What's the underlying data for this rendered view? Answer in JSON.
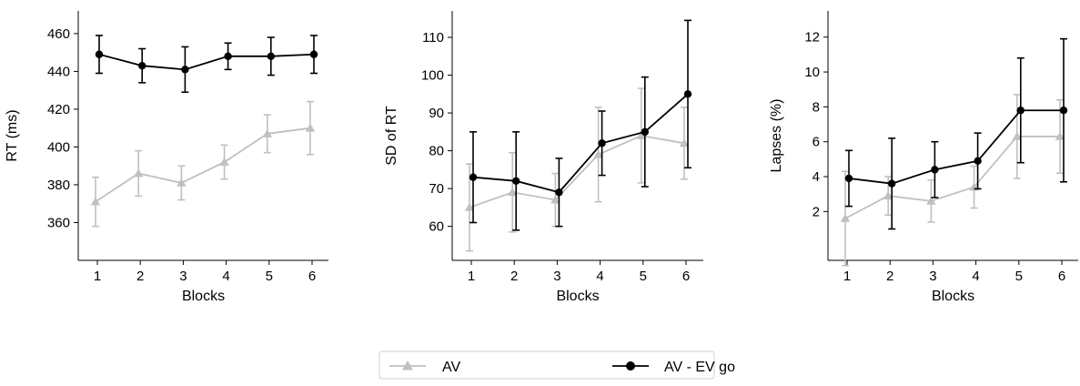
{
  "chart_data": [
    {
      "type": "line",
      "xlabel": "Blocks",
      "ylabel": "RT (ms)",
      "x": [
        1,
        2,
        3,
        4,
        5,
        6
      ],
      "xticks": [
        "1",
        "2",
        "3",
        "4",
        "5",
        "6"
      ],
      "yticks": [
        360,
        380,
        400,
        420,
        440,
        460
      ],
      "ylim": [
        340,
        472
      ],
      "series": [
        {
          "name": "AV",
          "color": "#c0c0c0",
          "marker": "triangle",
          "values": [
            371,
            386,
            381,
            392,
            407,
            410
          ],
          "err": [
            13,
            12,
            9,
            9,
            10,
            14
          ]
        },
        {
          "name": "AV - EV go",
          "color": "#000000",
          "marker": "circle",
          "values": [
            449,
            443,
            441,
            448,
            448,
            449
          ],
          "err": [
            10,
            9,
            12,
            7,
            10,
            10
          ]
        }
      ]
    },
    {
      "type": "line",
      "xlabel": "Blocks",
      "ylabel": "SD of RT",
      "x": [
        1,
        2,
        3,
        4,
        5,
        6
      ],
      "xticks": [
        "1",
        "2",
        "3",
        "4",
        "5",
        "6"
      ],
      "yticks": [
        60,
        70,
        80,
        90,
        100,
        110
      ],
      "ylim": [
        51,
        117
      ],
      "series": [
        {
          "name": "AV",
          "color": "#c0c0c0",
          "marker": "triangle",
          "values": [
            65,
            69,
            67,
            79,
            84,
            82
          ],
          "err": [
            11.5,
            10.5,
            7,
            12.5,
            12.5,
            9.5
          ]
        },
        {
          "name": "AV - EV go",
          "color": "#000000",
          "marker": "circle",
          "values": [
            73,
            72,
            69,
            82,
            85,
            95
          ],
          "err": [
            12,
            13,
            9,
            8.5,
            14.5,
            19.5
          ]
        }
      ]
    },
    {
      "type": "line",
      "xlabel": "Blocks",
      "ylabel": "Lapses (%)",
      "x": [
        1,
        2,
        3,
        4,
        5,
        6
      ],
      "xticks": [
        "1",
        "2",
        "3",
        "4",
        "5",
        "6"
      ],
      "yticks": [
        2,
        4,
        6,
        8,
        10,
        12
      ],
      "ylim": [
        -0.8,
        13.5
      ],
      "series": [
        {
          "name": "AV",
          "color": "#c0c0c0",
          "marker": "triangle",
          "values": [
            1.6,
            2.9,
            2.6,
            3.4,
            6.3,
            6.3
          ],
          "err": [
            2.7,
            1.1,
            1.2,
            1.2,
            2.4,
            2.1
          ]
        },
        {
          "name": "AV - EV go",
          "color": "#000000",
          "marker": "circle",
          "values": [
            3.9,
            3.6,
            4.4,
            4.9,
            7.8,
            7.8
          ],
          "err": [
            1.6,
            2.6,
            1.6,
            1.6,
            3.0,
            4.1
          ]
        }
      ]
    }
  ],
  "legend": {
    "position": "bottom-center",
    "entries": [
      {
        "label": "AV",
        "color": "#c0c0c0",
        "marker": "triangle"
      },
      {
        "label": "AV - EV go",
        "color": "#000000",
        "marker": "circle"
      }
    ]
  }
}
